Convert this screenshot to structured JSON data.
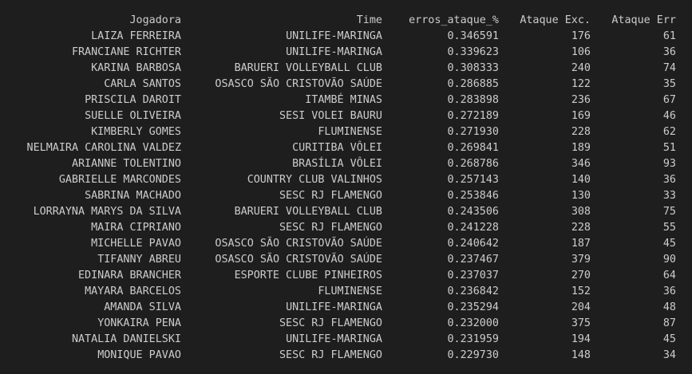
{
  "columns": {
    "name": "Jogadora",
    "team": "Time",
    "err_rate": "erros_ataque_%",
    "exc": "Ataque Exc.",
    "err": "Ataque Err"
  },
  "rows": [
    {
      "name": "LAIZA FERREIRA",
      "team": "UNILIFE-MARINGA",
      "err_rate": "0.346591",
      "exc": "176",
      "err": "61"
    },
    {
      "name": "FRANCIANE RICHTER",
      "team": "UNILIFE-MARINGA",
      "err_rate": "0.339623",
      "exc": "106",
      "err": "36"
    },
    {
      "name": "KARINA BARBOSA",
      "team": "BARUERI VOLLEYBALL CLUB",
      "err_rate": "0.308333",
      "exc": "240",
      "err": "74"
    },
    {
      "name": "CARLA SANTOS",
      "team": "OSASCO SÃO CRISTOVÃO SAÚDE",
      "err_rate": "0.286885",
      "exc": "122",
      "err": "35"
    },
    {
      "name": "PRISCILA DAROIT",
      "team": "ITAMBÉ MINAS",
      "err_rate": "0.283898",
      "exc": "236",
      "err": "67"
    },
    {
      "name": "SUELLE OLIVEIRA",
      "team": "SESI VOLEI BAURU",
      "err_rate": "0.272189",
      "exc": "169",
      "err": "46"
    },
    {
      "name": "KIMBERLY GOMES",
      "team": "FLUMINENSE",
      "err_rate": "0.271930",
      "exc": "228",
      "err": "62"
    },
    {
      "name": "NELMAIRA CAROLINA VALDEZ",
      "team": "CURITIBA VÔLEI",
      "err_rate": "0.269841",
      "exc": "189",
      "err": "51"
    },
    {
      "name": "ARIANNE TOLENTINO",
      "team": "BRASÍLIA VÔLEI",
      "err_rate": "0.268786",
      "exc": "346",
      "err": "93"
    },
    {
      "name": "GABRIELLE MARCONDES",
      "team": "COUNTRY CLUB VALINHOS",
      "err_rate": "0.257143",
      "exc": "140",
      "err": "36"
    },
    {
      "name": "SABRINA MACHADO",
      "team": "SESC RJ FLAMENGO",
      "err_rate": "0.253846",
      "exc": "130",
      "err": "33"
    },
    {
      "name": "LORRAYNA MARYS DA SILVA",
      "team": "BARUERI VOLLEYBALL CLUB",
      "err_rate": "0.243506",
      "exc": "308",
      "err": "75"
    },
    {
      "name": "MAIRA CIPRIANO",
      "team": "SESC RJ FLAMENGO",
      "err_rate": "0.241228",
      "exc": "228",
      "err": "55"
    },
    {
      "name": "MICHELLE PAVAO",
      "team": "OSASCO SÃO CRISTOVÃO SAÚDE",
      "err_rate": "0.240642",
      "exc": "187",
      "err": "45"
    },
    {
      "name": "TIFANNY ABREU",
      "team": "OSASCO SÃO CRISTOVÃO SAÚDE",
      "err_rate": "0.237467",
      "exc": "379",
      "err": "90"
    },
    {
      "name": "EDINARA BRANCHER",
      "team": "ESPORTE CLUBE PINHEIROS",
      "err_rate": "0.237037",
      "exc": "270",
      "err": "64"
    },
    {
      "name": "MAYARA BARCELOS",
      "team": "FLUMINENSE",
      "err_rate": "0.236842",
      "exc": "152",
      "err": "36"
    },
    {
      "name": "AMANDA SILVA",
      "team": "UNILIFE-MARINGA",
      "err_rate": "0.235294",
      "exc": "204",
      "err": "48"
    },
    {
      "name": "YONKAIRA PENA",
      "team": "SESC RJ FLAMENGO",
      "err_rate": "0.232000",
      "exc": "375",
      "err": "87"
    },
    {
      "name": "NATALIA DANIELSKI",
      "team": "UNILIFE-MARINGA",
      "err_rate": "0.231959",
      "exc": "194",
      "err": "45"
    },
    {
      "name": "MONIQUE PAVAO",
      "team": "SESC RJ FLAMENGO",
      "err_rate": "0.229730",
      "exc": "148",
      "err": "34"
    }
  ]
}
